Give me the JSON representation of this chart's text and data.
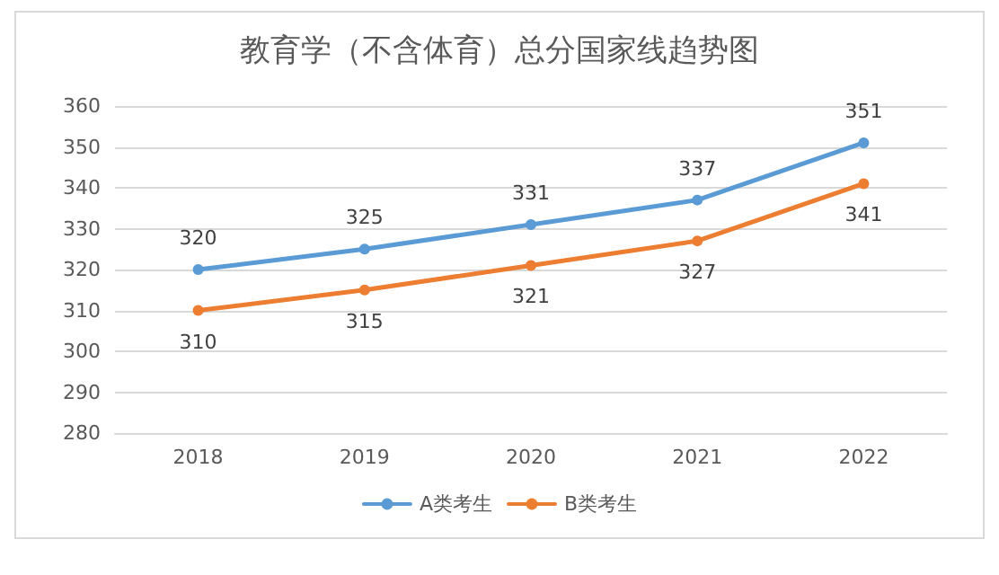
{
  "chart_data": {
    "type": "line",
    "title": "教育学（不含体育）总分国家线趋势图",
    "categories": [
      "2018",
      "2019",
      "2020",
      "2021",
      "2022"
    ],
    "series": [
      {
        "name": "A类考生",
        "color": "#5b9bd5",
        "values": [
          320,
          325,
          331,
          337,
          351
        ]
      },
      {
        "name": "B类考生",
        "color": "#ed7d31",
        "values": [
          310,
          315,
          321,
          327,
          341
        ]
      }
    ],
    "ylim": [
      280,
      360
    ],
    "yticks": [
      280,
      290,
      300,
      310,
      320,
      330,
      340,
      350,
      360
    ],
    "grid": "y",
    "legend": "bottom",
    "marker": "circle",
    "line_style": "solid",
    "data_labels": true
  }
}
